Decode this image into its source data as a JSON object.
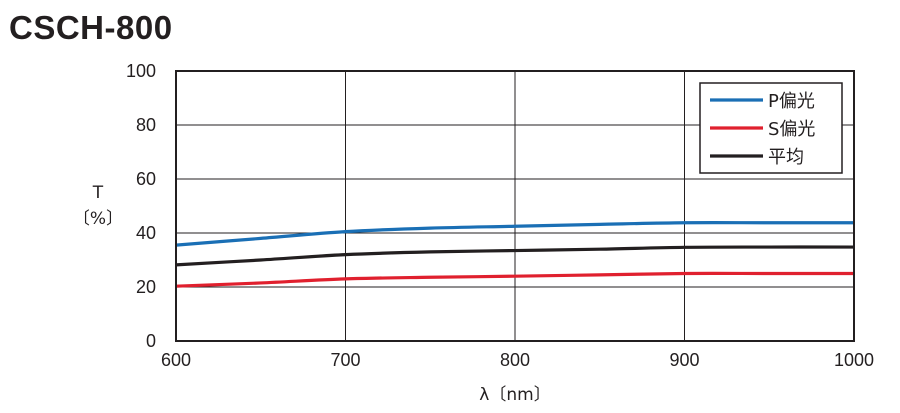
{
  "title": "CSCH-800",
  "chart_data": {
    "type": "line",
    "xlabel": "λ〔nm〕",
    "ylabel_lines": [
      "T",
      "〔%〕"
    ],
    "xlim": [
      600,
      1000
    ],
    "ylim": [
      0,
      100
    ],
    "xticks": [
      "600",
      "700",
      "800",
      "900",
      "1000"
    ],
    "yticks": [
      "0",
      "20",
      "40",
      "60",
      "80",
      "100"
    ],
    "grid": true,
    "legend_position": "top-right",
    "series": [
      {
        "name": "P偏光",
        "color": "#1a6fb5",
        "x": [
          600,
          650,
          700,
          750,
          800,
          850,
          900,
          950,
          1000
        ],
        "y": [
          35.5,
          38,
          40.5,
          41.8,
          42.5,
          43.2,
          43.8,
          43.8,
          43.8
        ]
      },
      {
        "name": "S偏光",
        "color": "#e0202e",
        "x": [
          600,
          650,
          700,
          750,
          800,
          850,
          900,
          950,
          1000
        ],
        "y": [
          20.3,
          21.5,
          23,
          23.6,
          24,
          24.5,
          25,
          25,
          25
        ]
      },
      {
        "name": "平均",
        "color": "#231f20",
        "x": [
          600,
          650,
          700,
          750,
          800,
          850,
          900,
          950,
          1000
        ],
        "y": [
          28.2,
          30,
          32,
          33,
          33.5,
          34,
          34.7,
          34.8,
          34.8
        ]
      }
    ]
  }
}
